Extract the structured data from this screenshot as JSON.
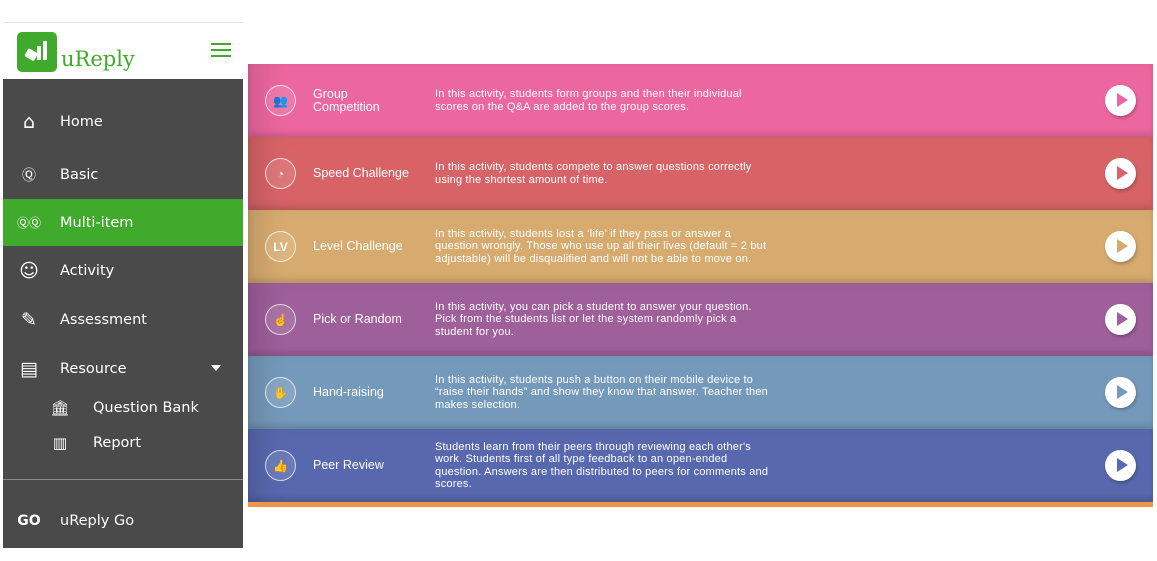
{
  "brand": {
    "name": "uReply",
    "accent": "#3faa2b"
  },
  "sidebar": {
    "items": [
      {
        "label": "Home",
        "icon": "home-icon"
      },
      {
        "label": "Basic",
        "icon": "q-bubble-icon"
      },
      {
        "label": "Multi-item",
        "icon": "qq-bubbles-icon",
        "active": true
      },
      {
        "label": "Activity",
        "icon": "smiley-icon"
      },
      {
        "label": "Assessment",
        "icon": "pencil-icon"
      },
      {
        "label": "Resource",
        "icon": "library-icon",
        "expanded": true
      },
      {
        "label": "Question Bank",
        "icon": "bank-icon"
      },
      {
        "label": "Report",
        "icon": "bar-chart-icon"
      },
      {
        "label": "uReply Go",
        "icon": "ureply-go-logo"
      }
    ]
  },
  "activities": [
    {
      "title": "Group Competition",
      "desc": "In this activity, students form groups and then their individual scores on the Q&A are added to the group scores.",
      "color": "#ec679f",
      "icon": "group-icon"
    },
    {
      "title": "Speed Challenge",
      "desc": "In this activity, students compete to answer questions correctly using the shortest amount of time.",
      "color": "#d76367",
      "icon": "speedometer-icon"
    },
    {
      "title": "Level Challenge",
      "desc": "In this activity, students lost a ‘life’ if they pass or answer a question wrongly. Those who use up all their lives (default = 2 but adjustable) will be disqualified and will not be able to move on.",
      "color": "#d7ab6f",
      "icon": "level-icon",
      "icon_text": "LV"
    },
    {
      "title": "Pick or Random",
      "desc": "In this activity, you can pick a student to answer your question. Pick from the students list or let the system randomly pick a student for you.",
      "color": "#9e5f9a",
      "icon": "hand-pick-icon"
    },
    {
      "title": "Hand-raising",
      "desc": "In this activity, students push a button on their mobile device to “raise their hands” and show they know that answer. Teacher then makes selection.",
      "color": "#7599bb",
      "icon": "raised-hands-icon"
    },
    {
      "title": "Peer Review",
      "desc": "Students learn from their peers through reviewing each other's work. Students first of all type feedback to an open-ended question. Answers are then distributed to peers for comments and scores.",
      "color": "#5868ae",
      "icon": "thumbs-icon"
    }
  ]
}
